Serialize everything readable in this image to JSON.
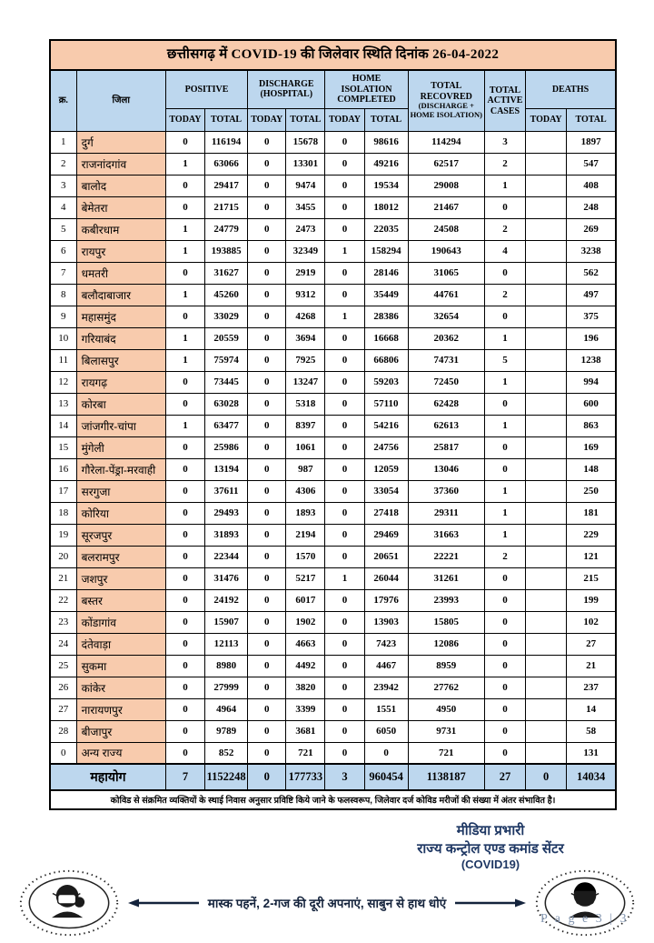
{
  "table": {
    "title": "छत्तीसगढ़ में COVID-19 की जिलेवार स्थिति दिनांक 26-04-2022",
    "columns": {
      "sn": "क्र.",
      "district": "जिला",
      "positive": "POSITIVE",
      "discharge_l1": "DISCHARGE",
      "discharge_l2": "(HOSPITAL)",
      "home_l1": "HOME ISOLATION",
      "home_l2": "COMPLETED",
      "recovered_l1": "TOTAL RECOVRED",
      "recovered_l2": "(DISCHARGE + HOME ISOLATION)",
      "active": "TOTAL ACTIVE CASES",
      "deaths": "DEATHS",
      "today": "TODAY",
      "total": "TOTAL"
    },
    "rows": [
      [
        "1",
        "दुर्ग",
        "0",
        "116194",
        "0",
        "15678",
        "0",
        "98616",
        "114294",
        "3",
        "",
        "1897"
      ],
      [
        "2",
        "राजनांदगांव",
        "1",
        "63066",
        "0",
        "13301",
        "0",
        "49216",
        "62517",
        "2",
        "",
        "547"
      ],
      [
        "3",
        "बालोद",
        "0",
        "29417",
        "0",
        "9474",
        "0",
        "19534",
        "29008",
        "1",
        "",
        "408"
      ],
      [
        "4",
        "बेमेतरा",
        "0",
        "21715",
        "0",
        "3455",
        "0",
        "18012",
        "21467",
        "0",
        "",
        "248"
      ],
      [
        "5",
        "कबीरधाम",
        "1",
        "24779",
        "0",
        "2473",
        "0",
        "22035",
        "24508",
        "2",
        "",
        "269"
      ],
      [
        "6",
        "रायपुर",
        "1",
        "193885",
        "0",
        "32349",
        "1",
        "158294",
        "190643",
        "4",
        "",
        "3238"
      ],
      [
        "7",
        "धमतरी",
        "0",
        "31627",
        "0",
        "2919",
        "0",
        "28146",
        "31065",
        "0",
        "",
        "562"
      ],
      [
        "8",
        "बलौदाबाजार",
        "1",
        "45260",
        "0",
        "9312",
        "0",
        "35449",
        "44761",
        "2",
        "",
        "497"
      ],
      [
        "9",
        "महासमुंद",
        "0",
        "33029",
        "0",
        "4268",
        "1",
        "28386",
        "32654",
        "0",
        "",
        "375"
      ],
      [
        "10",
        "गरियाबंद",
        "1",
        "20559",
        "0",
        "3694",
        "0",
        "16668",
        "20362",
        "1",
        "",
        "196"
      ],
      [
        "11",
        "बिलासपुर",
        "1",
        "75974",
        "0",
        "7925",
        "0",
        "66806",
        "74731",
        "5",
        "",
        "1238"
      ],
      [
        "12",
        "रायगढ़",
        "0",
        "73445",
        "0",
        "13247",
        "0",
        "59203",
        "72450",
        "1",
        "",
        "994"
      ],
      [
        "13",
        "कोरबा",
        "0",
        "63028",
        "0",
        "5318",
        "0",
        "57110",
        "62428",
        "0",
        "",
        "600"
      ],
      [
        "14",
        "जांजगीर-चांपा",
        "1",
        "63477",
        "0",
        "8397",
        "0",
        "54216",
        "62613",
        "1",
        "",
        "863"
      ],
      [
        "15",
        "मुंगेली",
        "0",
        "25986",
        "0",
        "1061",
        "0",
        "24756",
        "25817",
        "0",
        "",
        "169"
      ],
      [
        "16",
        "गौरेला-पेंड्रा-मरवाही",
        "0",
        "13194",
        "0",
        "987",
        "0",
        "12059",
        "13046",
        "0",
        "",
        "148"
      ],
      [
        "17",
        "सरगुजा",
        "0",
        "37611",
        "0",
        "4306",
        "0",
        "33054",
        "37360",
        "1",
        "",
        "250"
      ],
      [
        "18",
        "कोरिया",
        "0",
        "29493",
        "0",
        "1893",
        "0",
        "27418",
        "29311",
        "1",
        "",
        "181"
      ],
      [
        "19",
        "सूरजपुर",
        "0",
        "31893",
        "0",
        "2194",
        "0",
        "29469",
        "31663",
        "1",
        "",
        "229"
      ],
      [
        "20",
        "बलरामपुर",
        "0",
        "22344",
        "0",
        "1570",
        "0",
        "20651",
        "22221",
        "2",
        "",
        "121"
      ],
      [
        "21",
        "जशपुर",
        "0",
        "31476",
        "0",
        "5217",
        "1",
        "26044",
        "31261",
        "0",
        "",
        "215"
      ],
      [
        "22",
        "बस्तर",
        "0",
        "24192",
        "0",
        "6017",
        "0",
        "17976",
        "23993",
        "0",
        "",
        "199"
      ],
      [
        "23",
        "कोंडागांव",
        "0",
        "15907",
        "0",
        "1902",
        "0",
        "13903",
        "15805",
        "0",
        "",
        "102"
      ],
      [
        "24",
        "दंतेवाड़ा",
        "0",
        "12113",
        "0",
        "4663",
        "0",
        "7423",
        "12086",
        "0",
        "",
        "27"
      ],
      [
        "25",
        "सुकमा",
        "0",
        "8980",
        "0",
        "4492",
        "0",
        "4467",
        "8959",
        "0",
        "",
        "21"
      ],
      [
        "26",
        "कांकेर",
        "0",
        "27999",
        "0",
        "3820",
        "0",
        "23942",
        "27762",
        "0",
        "",
        "237"
      ],
      [
        "27",
        "नारायणपुर",
        "0",
        "4964",
        "0",
        "3399",
        "0",
        "1551",
        "4950",
        "0",
        "",
        "14"
      ],
      [
        "28",
        "बीजापुर",
        "0",
        "9789",
        "0",
        "3681",
        "0",
        "6050",
        "9731",
        "0",
        "",
        "58"
      ],
      [
        "0",
        "अन्य राज्य",
        "0",
        "852",
        "0",
        "721",
        "0",
        "0",
        "721",
        "0",
        "",
        "131"
      ]
    ],
    "total_row": {
      "label": "महायोग",
      "values": [
        "7",
        "1152248",
        "0",
        "177733",
        "3",
        "960454",
        "1138187",
        "27",
        "0",
        "14034"
      ]
    },
    "note": "कोविड से संक्रमित व्यक्तियों के स्थाई निवास अनुसार प्रविष्टि किये जाने के फलस्वरूप, जिलेवार दर्ज कोविड मरीजों की संख्या में अंतर संभावित है।"
  },
  "signature": {
    "line1": "मीडिया प्रभारी",
    "line2": "राज्य कन्ट्रोल एण्ड कमांड सेंटर",
    "line3": "(COVID19)"
  },
  "banner": {
    "text": "मास्क पहनें, 2-गज की दूरी अपनाएं, साबुन से हाथ धोएं"
  },
  "page_label": "P a g e 3 | 3",
  "colors": {
    "peach": "#F8CBAD",
    "light_blue": "#BDD7EE",
    "navy_text": "#1F3864",
    "page_label_gray": "#8496B0"
  }
}
